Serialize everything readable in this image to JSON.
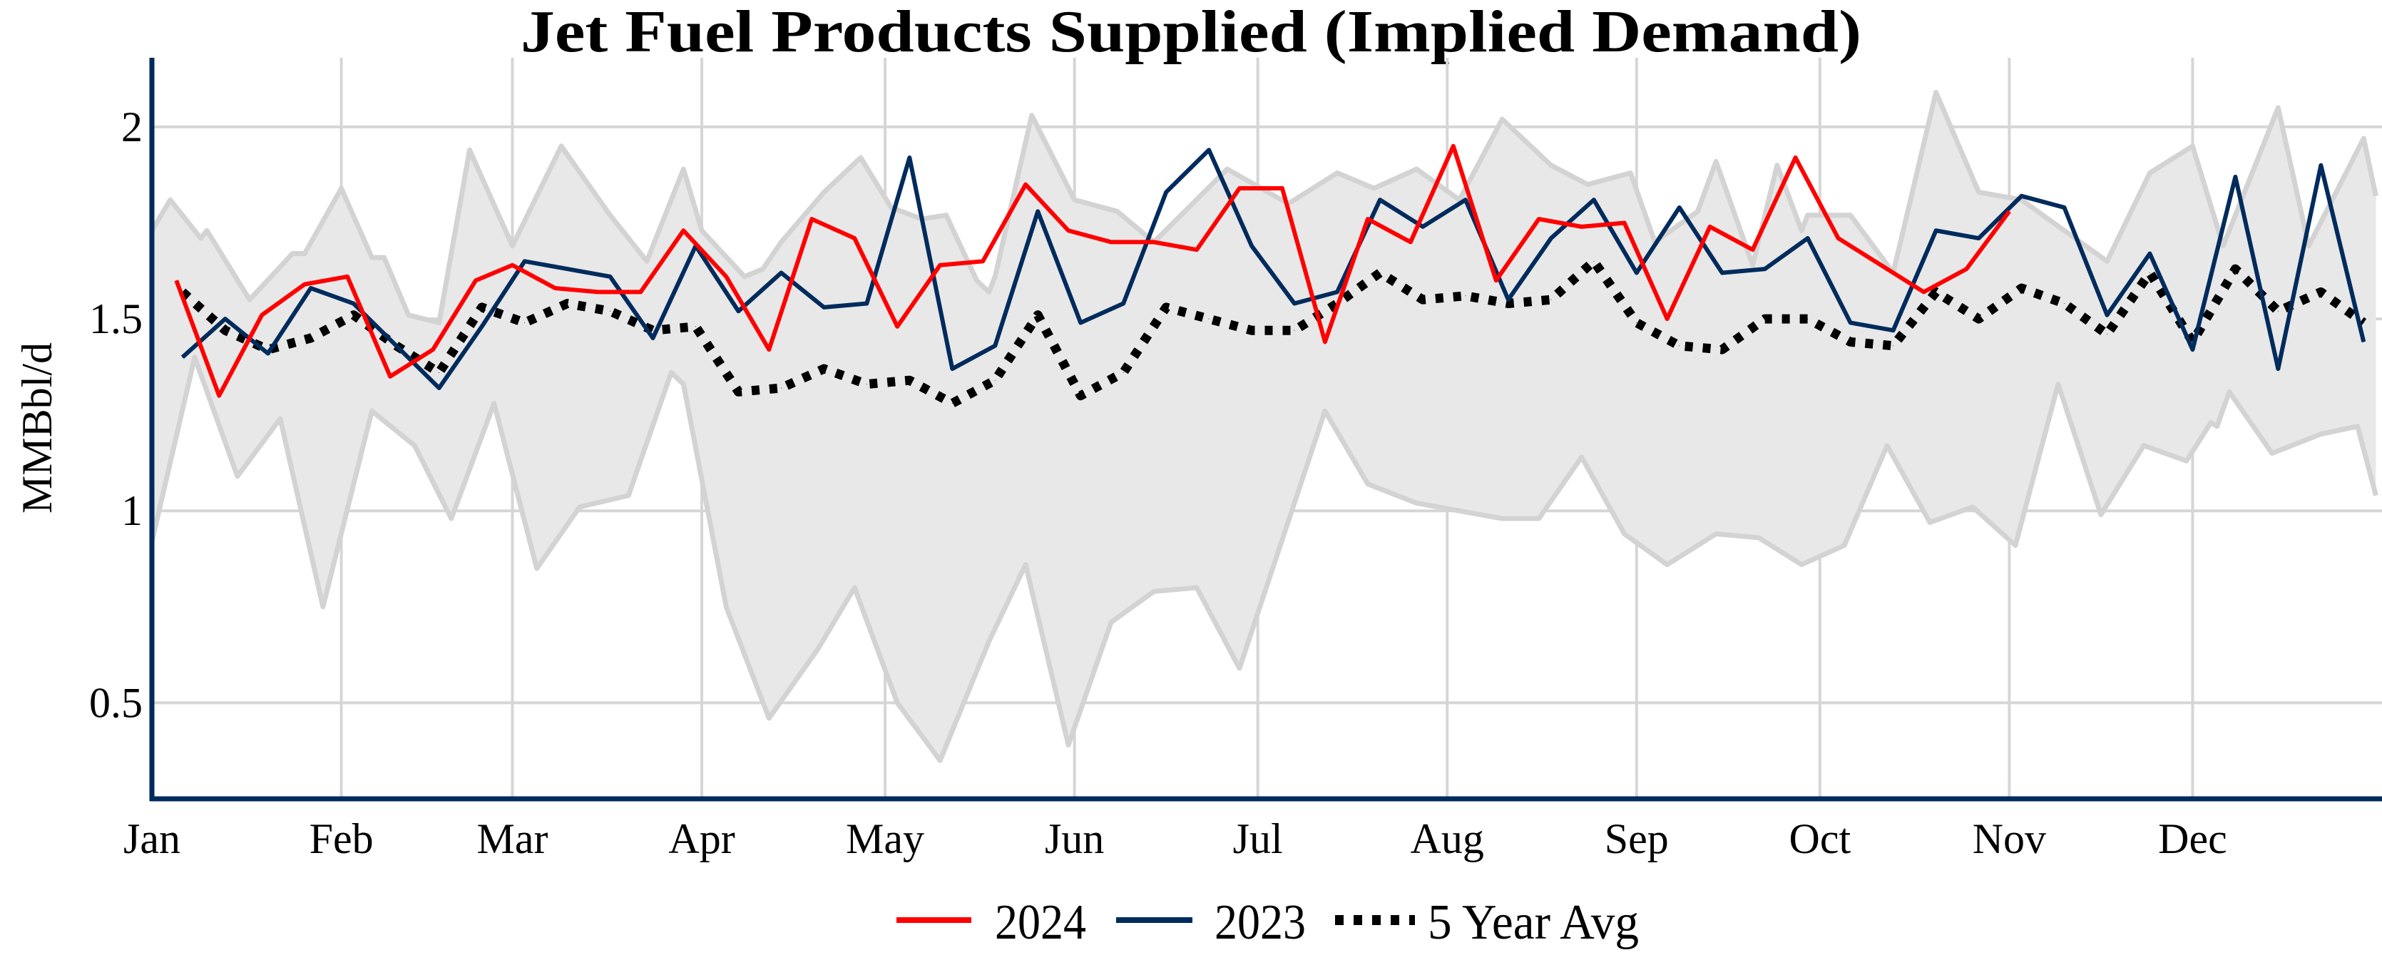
{
  "chart_data": {
    "type": "line",
    "title": "Jet Fuel Products Supplied (Implied Demand)",
    "xlabel": "",
    "ylabel": "MMBbl/d",
    "x_tick_labels": [
      "Jan",
      "Feb",
      "Mar",
      "Apr",
      "May",
      "Jun",
      "Jul",
      "Aug",
      "Sep",
      "Oct",
      "Nov",
      "Dec"
    ],
    "y_ticks": [
      0.5,
      1,
      1.5,
      2
    ],
    "y_tick_labels": [
      "0.5",
      "1",
      "1.5",
      "2"
    ],
    "ylim": [
      0.25,
      2.18
    ],
    "xlim": [
      "01-01",
      "12-31"
    ],
    "grid": true,
    "legend_position": "bottom-center",
    "colors": {
      "s2024": "#ff0000",
      "s2023": "#002b5c",
      "avg": "#000000",
      "band_fill": "#e8e8e8",
      "band_edge": "#d3d3d3",
      "grid": "#d6d6d6",
      "axis": "#002b5c"
    },
    "series": [
      {
        "name": "2024",
        "style": "solid",
        "dates": [
          "01-05",
          "01-12",
          "01-19",
          "01-26",
          "02-02",
          "02-09",
          "02-16",
          "02-23",
          "03-01",
          "03-08",
          "03-15",
          "03-22",
          "03-29",
          "04-05",
          "04-12",
          "04-19",
          "04-26",
          "05-03",
          "05-10",
          "05-17",
          "05-24",
          "05-31",
          "06-07",
          "06-14",
          "06-21",
          "06-28",
          "07-05",
          "07-12",
          "07-19",
          "07-26",
          "08-02",
          "08-09",
          "08-16",
          "08-23",
          "08-30",
          "09-06",
          "09-13",
          "09-20",
          "09-27",
          "10-04",
          "10-11",
          "10-18",
          "10-25",
          "11-01"
        ],
        "values": [
          1.6,
          1.3,
          1.51,
          1.59,
          1.61,
          1.35,
          1.42,
          1.6,
          1.64,
          1.58,
          1.57,
          1.57,
          1.73,
          1.61,
          1.42,
          1.76,
          1.71,
          1.48,
          1.64,
          1.65,
          1.85,
          1.73,
          1.7,
          1.7,
          1.68,
          1.84,
          1.84,
          1.44,
          1.76,
          1.7,
          1.95,
          1.6,
          1.76,
          1.74,
          1.75,
          1.5,
          1.74,
          1.68,
          1.92,
          1.71,
          1.64,
          1.57,
          1.63,
          1.78
        ]
      },
      {
        "name": "2023",
        "style": "solid",
        "dates": [
          "01-06",
          "01-13",
          "01-20",
          "01-27",
          "02-03",
          "02-10",
          "02-17",
          "02-24",
          "03-03",
          "03-10",
          "03-17",
          "03-24",
          "03-31",
          "04-07",
          "04-14",
          "04-21",
          "04-28",
          "05-05",
          "05-12",
          "05-19",
          "05-26",
          "06-02",
          "06-09",
          "06-16",
          "06-23",
          "06-30",
          "07-07",
          "07-14",
          "07-21",
          "07-28",
          "08-04",
          "08-11",
          "08-18",
          "08-25",
          "09-01",
          "09-08",
          "09-15",
          "09-22",
          "09-29",
          "10-06",
          "10-13",
          "10-20",
          "10-27",
          "11-03",
          "11-10",
          "11-17",
          "11-24",
          "12-01",
          "12-08",
          "12-15",
          "12-22",
          "12-29"
        ],
        "values": [
          1.4,
          1.5,
          1.41,
          1.58,
          1.54,
          1.43,
          1.32,
          1.48,
          1.65,
          1.63,
          1.61,
          1.45,
          1.69,
          1.52,
          1.62,
          1.53,
          1.54,
          1.92,
          1.37,
          1.43,
          1.78,
          1.49,
          1.54,
          1.83,
          1.94,
          1.69,
          1.54,
          1.57,
          1.81,
          1.74,
          1.81,
          1.55,
          1.71,
          1.81,
          1.62,
          1.79,
          1.62,
          1.63,
          1.71,
          1.49,
          1.47,
          1.73,
          1.71,
          1.82,
          1.79,
          1.51,
          1.67,
          1.42,
          1.87,
          1.37,
          1.9,
          1.44
        ]
      },
      {
        "name": "5 Year Avg",
        "style": "dotted",
        "dates": [
          "01-06",
          "01-13",
          "01-20",
          "01-27",
          "02-03",
          "02-10",
          "02-17",
          "02-24",
          "03-03",
          "03-10",
          "03-17",
          "03-24",
          "03-31",
          "04-07",
          "04-14",
          "04-21",
          "04-28",
          "05-05",
          "05-12",
          "05-19",
          "05-26",
          "06-02",
          "06-09",
          "06-16",
          "06-23",
          "06-30",
          "07-07",
          "07-14",
          "07-21",
          "07-28",
          "08-04",
          "08-11",
          "08-18",
          "08-25",
          "09-01",
          "09-08",
          "09-15",
          "09-22",
          "09-29",
          "10-06",
          "10-13",
          "10-20",
          "10-27",
          "11-03",
          "11-10",
          "11-17",
          "11-24",
          "12-01",
          "12-08",
          "12-15",
          "12-22",
          "12-29"
        ],
        "values": [
          1.57,
          1.47,
          1.42,
          1.45,
          1.51,
          1.43,
          1.36,
          1.53,
          1.49,
          1.54,
          1.52,
          1.47,
          1.48,
          1.31,
          1.32,
          1.37,
          1.33,
          1.34,
          1.28,
          1.34,
          1.51,
          1.3,
          1.36,
          1.53,
          1.5,
          1.47,
          1.47,
          1.54,
          1.62,
          1.55,
          1.56,
          1.54,
          1.55,
          1.65,
          1.49,
          1.43,
          1.42,
          1.5,
          1.5,
          1.44,
          1.43,
          1.57,
          1.5,
          1.58,
          1.54,
          1.46,
          1.62,
          1.44,
          1.63,
          1.52,
          1.57,
          1.49
        ]
      }
    ],
    "range_band": {
      "upper": [
        [
          "01-01",
          1.73
        ],
        [
          "01-04",
          1.81
        ],
        [
          "01-09",
          1.71
        ],
        [
          "01-10",
          1.73
        ],
        [
          "01-17",
          1.55
        ],
        [
          "01-24",
          1.67
        ],
        [
          "01-26",
          1.67
        ],
        [
          "02-01",
          1.84
        ],
        [
          "02-06",
          1.66
        ],
        [
          "02-08",
          1.66
        ],
        [
          "02-12",
          1.51
        ],
        [
          "02-17",
          1.49
        ],
        [
          "02-22",
          1.94
        ],
        [
          "03-01",
          1.69
        ],
        [
          "03-09",
          1.95
        ],
        [
          "03-17",
          1.77
        ],
        [
          "03-23",
          1.65
        ],
        [
          "03-29",
          1.89
        ],
        [
          "04-01",
          1.73
        ],
        [
          "04-08",
          1.61
        ],
        [
          "04-11",
          1.63
        ],
        [
          "04-14",
          1.7
        ],
        [
          "04-21",
          1.83
        ],
        [
          "04-27",
          1.92
        ],
        [
          "05-02",
          1.79
        ],
        [
          "05-07",
          1.76
        ],
        [
          "05-11",
          1.77
        ],
        [
          "05-16",
          1.6
        ],
        [
          "05-18",
          1.57
        ],
        [
          "05-19",
          1.61
        ],
        [
          "05-25",
          2.03
        ],
        [
          "06-01",
          1.81
        ],
        [
          "06-08",
          1.78
        ],
        [
          "06-14",
          1.7
        ],
        [
          "06-26",
          1.89
        ],
        [
          "07-06",
          1.8
        ],
        [
          "07-14",
          1.88
        ],
        [
          "07-20",
          1.84
        ],
        [
          "07-27",
          1.89
        ],
        [
          "08-03",
          1.81
        ],
        [
          "08-10",
          2.02
        ],
        [
          "08-18",
          1.9
        ],
        [
          "08-24",
          1.85
        ],
        [
          "08-31",
          1.88
        ],
        [
          "09-04",
          1.7
        ],
        [
          "09-11",
          1.78
        ],
        [
          "09-14",
          1.91
        ],
        [
          "09-20",
          1.64
        ],
        [
          "09-24",
          1.9
        ],
        [
          "09-28",
          1.73
        ],
        [
          "09-29",
          1.77
        ],
        [
          "10-06",
          1.77
        ],
        [
          "10-13",
          1.62
        ],
        [
          "10-20",
          2.09
        ],
        [
          "10-27",
          1.83
        ],
        [
          "11-03",
          1.81
        ],
        [
          "11-17",
          1.65
        ],
        [
          "11-24",
          1.88
        ],
        [
          "12-01",
          1.95
        ],
        [
          "12-06",
          1.69
        ],
        [
          "12-15",
          2.05
        ],
        [
          "12-20",
          1.69
        ],
        [
          "12-29",
          1.97
        ],
        [
          "12-31",
          1.82
        ]
      ],
      "lower": [
        [
          "01-01",
          0.92
        ],
        [
          "01-08",
          1.4
        ],
        [
          "01-15",
          1.09
        ],
        [
          "01-22",
          1.24
        ],
        [
          "01-29",
          0.75
        ],
        [
          "02-06",
          1.26
        ],
        [
          "02-13",
          1.17
        ],
        [
          "02-19",
          0.98
        ],
        [
          "02-26",
          1.28
        ],
        [
          "03-05",
          0.85
        ],
        [
          "03-12",
          1.01
        ],
        [
          "03-20",
          1.04
        ],
        [
          "03-27",
          1.36
        ],
        [
          "03-29",
          1.33
        ],
        [
          "04-05",
          0.75
        ],
        [
          "04-12",
          0.46
        ],
        [
          "04-20",
          0.64
        ],
        [
          "04-26",
          0.8
        ],
        [
          "05-03",
          0.5
        ],
        [
          "05-10",
          0.35
        ],
        [
          "05-18",
          0.66
        ],
        [
          "05-24",
          0.86
        ],
        [
          "05-31",
          0.39
        ],
        [
          "06-07",
          0.71
        ],
        [
          "06-14",
          0.79
        ],
        [
          "06-21",
          0.8
        ],
        [
          "06-28",
          0.59
        ],
        [
          "07-12",
          1.26
        ],
        [
          "07-19",
          1.07
        ],
        [
          "07-27",
          1.02
        ],
        [
          "08-10",
          0.98
        ],
        [
          "08-16",
          0.98
        ],
        [
          "08-23",
          1.14
        ],
        [
          "08-30",
          0.94
        ],
        [
          "09-06",
          0.86
        ],
        [
          "09-14",
          0.94
        ],
        [
          "09-21",
          0.93
        ],
        [
          "09-28",
          0.86
        ],
        [
          "10-05",
          0.91
        ],
        [
          "10-12",
          1.17
        ],
        [
          "10-19",
          0.97
        ],
        [
          "10-26",
          1.01
        ],
        [
          "11-02",
          0.91
        ],
        [
          "11-09",
          1.33
        ],
        [
          "11-16",
          0.99
        ],
        [
          "11-23",
          1.17
        ],
        [
          "11-30",
          1.13
        ],
        [
          "12-04",
          1.23
        ],
        [
          "12-05",
          1.22
        ],
        [
          "12-07",
          1.31
        ],
        [
          "12-14",
          1.15
        ],
        [
          "12-22",
          1.2
        ],
        [
          "12-28",
          1.22
        ],
        [
          "12-31",
          1.04
        ]
      ]
    }
  }
}
